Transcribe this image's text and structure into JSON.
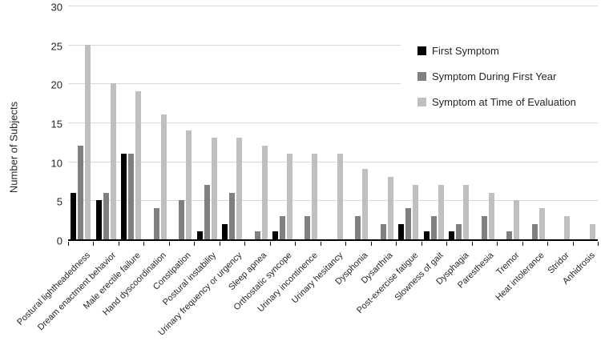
{
  "chart_data": {
    "type": "bar",
    "title": "",
    "xlabel": "",
    "ylabel": "Number of Subjects",
    "ylim": [
      0,
      30
    ],
    "ytick_step": 5,
    "yticks": [
      0,
      5,
      10,
      15,
      20,
      25,
      30
    ],
    "grid": true,
    "legend_position": "top-right",
    "categories": [
      "Postural lightheadedness",
      "Dream enactment behavior",
      "Male erectile failure",
      "Hand dyscoordination",
      "Constipation",
      "Postural instability",
      "Urinary frequency or urgency",
      "Sleep apnea",
      "Orthostatic syncope",
      "Urinary incontinence",
      "Urinary hesitancy",
      "Dysphonia",
      "Dysarthria",
      "Post-exercise fatigue",
      "Slowness of gait",
      "Dysphagia",
      "Paresthesia",
      "Tremor",
      "Heat intolerance",
      "Stridor",
      "Anhidrosis"
    ],
    "series": [
      {
        "name": "First Symptom",
        "color": "#000000",
        "values": [
          6,
          5,
          11,
          0,
          0,
          1,
          2,
          0,
          1,
          0,
          0,
          0,
          0,
          2,
          1,
          1,
          0,
          0,
          0,
          0,
          0
        ]
      },
      {
        "name": "Symptom During First Year",
        "color": "#7f7f7f",
        "values": [
          12,
          6,
          11,
          4,
          5,
          7,
          6,
          1,
          3,
          3,
          0,
          3,
          2,
          4,
          3,
          2,
          3,
          1,
          2,
          0,
          0
        ]
      },
      {
        "name": "Symptom at Time of Evaluation",
        "color": "#bfbfbf",
        "values": [
          25,
          20,
          19,
          16,
          14,
          13,
          13,
          12,
          11,
          11,
          11,
          9,
          8,
          7,
          7,
          7,
          6,
          5,
          4,
          3,
          2
        ]
      }
    ]
  },
  "colors": {
    "background": "#ffffff",
    "gridline": "#d9d9d9",
    "axis": "#000000",
    "text": "#262626"
  }
}
